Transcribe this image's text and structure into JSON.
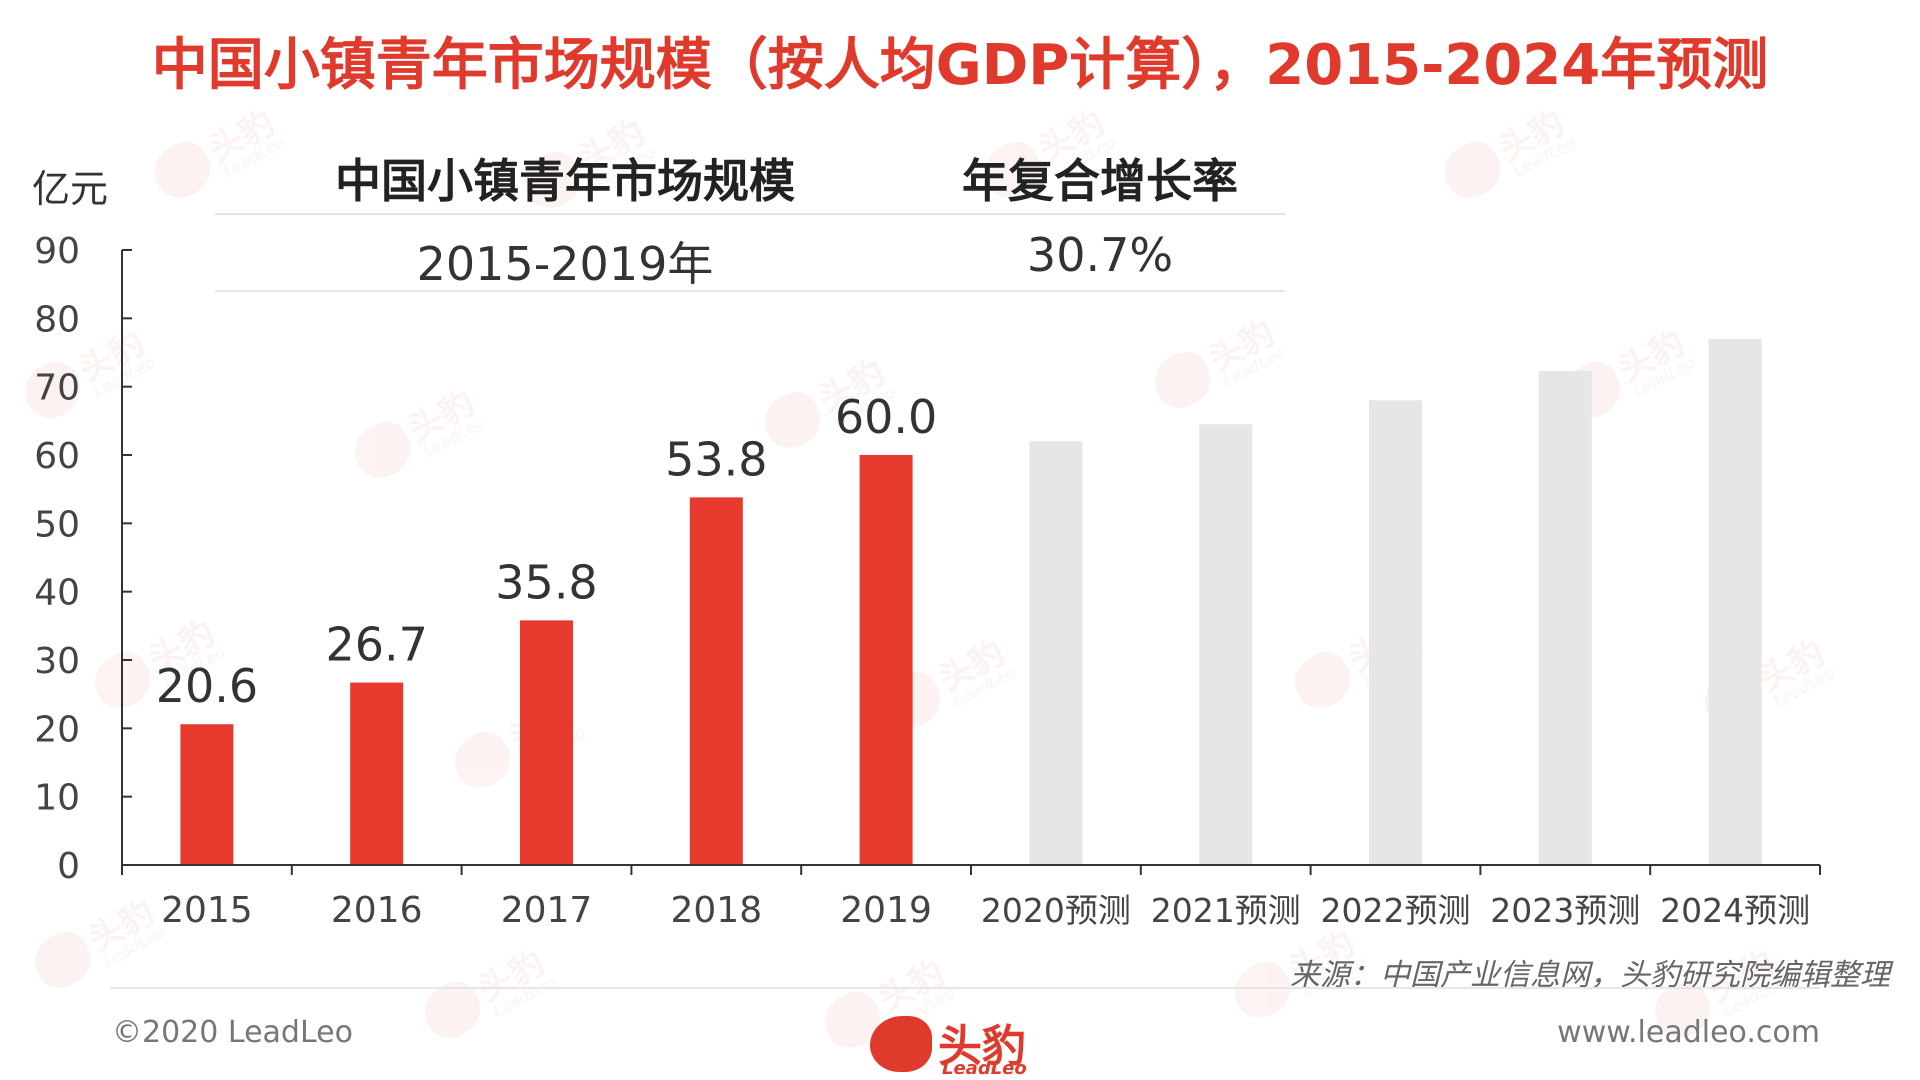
{
  "title": "中国小镇青年市场规模（按人均GDP计算），2015-2024年预测",
  "unit_label": "亿元",
  "summary": {
    "header_left": "中国小镇青年市场规模",
    "header_right": "年复合增长率",
    "period": "2015-2019年",
    "cagr": "30.7%"
  },
  "source": "来源：中国产业信息网，头豹研究院编辑整理",
  "copyright": "©2020 LeadLeo",
  "website": "www.leadleo.com",
  "logo": {
    "name": "头豹",
    "sub": "LeadLeo"
  },
  "watermark": {
    "name": "头豹",
    "sub": "LeadLeo"
  },
  "chart_data": {
    "type": "bar",
    "categories": [
      "2015",
      "2016",
      "2017",
      "2018",
      "2019",
      "2020预测",
      "2021预测",
      "2022预测",
      "2023预测",
      "2024预测"
    ],
    "values": [
      20.6,
      26.7,
      35.8,
      53.8,
      60.0,
      62.0,
      64.5,
      68.0,
      72.3,
      77.0
    ],
    "data_labels": [
      "20.6",
      "26.7",
      "35.8",
      "53.8",
      "60.0",
      "",
      "",
      "",
      "",
      ""
    ],
    "bar_colors": [
      "#e53a2d",
      "#e53a2d",
      "#e53a2d",
      "#e53a2d",
      "#e53a2d",
      "#e6e6e6",
      "#e6e6e6",
      "#e6e6e6",
      "#e6e6e6",
      "#e6e6e6"
    ],
    "ylim": [
      0,
      90
    ],
    "yticks": [
      0,
      10,
      20,
      30,
      40,
      50,
      60,
      70,
      80,
      90
    ],
    "ylabel": "亿元",
    "xlabel": "",
    "grid": false,
    "legend": "none"
  }
}
